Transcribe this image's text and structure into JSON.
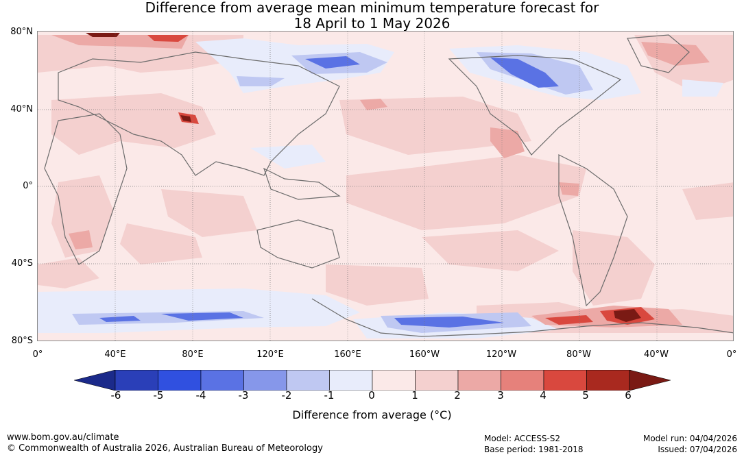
{
  "title": {
    "line1": "Difference from average mean minimum temperature forecast for",
    "line2": "18 April to 1 May 2026"
  },
  "map": {
    "lat_labels": [
      "80°N",
      "40°N",
      "0°",
      "40°S",
      "80°S"
    ],
    "lon_labels": [
      "0°",
      "40°E",
      "80°E",
      "120°E",
      "160°E",
      "160°W",
      "120°W",
      "80°W",
      "40°W",
      "0°"
    ]
  },
  "colorbar": {
    "ticks": [
      "-6",
      "-5",
      "-4",
      "-3",
      "-2",
      "-1",
      "0",
      "1",
      "2",
      "3",
      "4",
      "5",
      "6"
    ],
    "colors": [
      "#1b2a8a",
      "#2a3fb8",
      "#3050e0",
      "#5a72e4",
      "#8697ea",
      "#bfc8f2",
      "#e8ecfb",
      "#fbe9e8",
      "#f4d0cf",
      "#eca9a6",
      "#e6817b",
      "#d9483e",
      "#a9291f",
      "#7a1a14"
    ],
    "label": "Difference from average (°C)"
  },
  "footer": {
    "website": "www.bom.gov.au/climate",
    "copyright": "© Commonwealth of Australia 2026, Australian Bureau of Meteorology",
    "model": "Model: ACCESS-S2",
    "base_period": "Base period: 1981-2018",
    "model_run": "Model run: 04/04/2026",
    "issued": "Issued: 07/04/2026"
  }
}
